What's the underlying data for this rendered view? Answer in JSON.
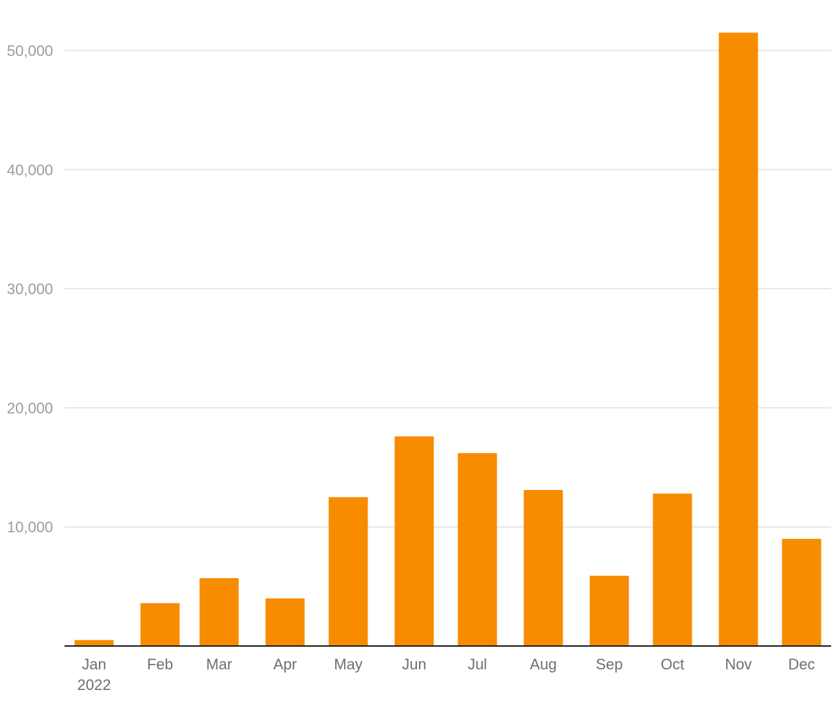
{
  "chart_data": {
    "type": "bar",
    "categories": [
      "Jan",
      "Feb",
      "Mar",
      "Apr",
      "May",
      "Jun",
      "Jul",
      "Aug",
      "Sep",
      "Oct",
      "Nov",
      "Dec"
    ],
    "category_sublabels": [
      "2022",
      "",
      "",
      "",
      "",
      "",
      "",
      "",
      "",
      "",
      "",
      ""
    ],
    "values": [
      500,
      3600,
      5700,
      4000,
      12500,
      17600,
      16200,
      13100,
      5900,
      12800,
      51500,
      9000
    ],
    "y_ticks": [
      10000,
      20000,
      30000,
      40000,
      50000
    ],
    "y_tick_labels": [
      "10,000",
      "20,000",
      "30,000",
      "40,000",
      "50,000"
    ],
    "ylim": [
      0,
      54000
    ],
    "grid": true,
    "legend": "none",
    "title": "",
    "xlabel": "",
    "ylabel": "",
    "bar_color": "#f78c00",
    "grid_color": "#e6e6e6",
    "axis_color": "#1a1a1a"
  }
}
